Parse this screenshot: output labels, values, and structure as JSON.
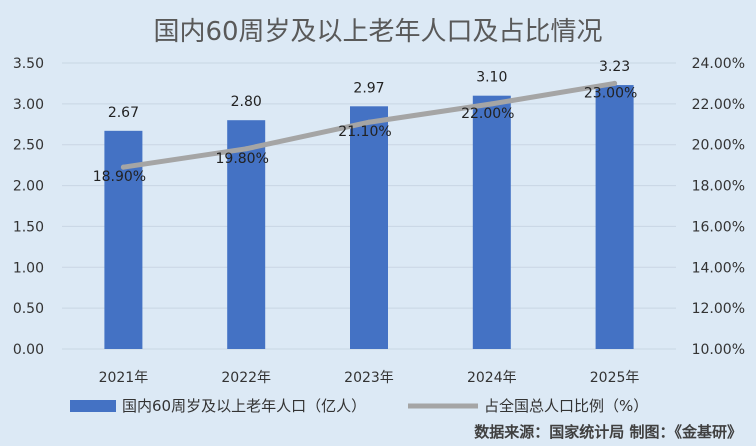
{
  "chart_data": {
    "type": "bar",
    "title": "国内60周岁及以上老年人口及占比情况",
    "categories": [
      "2021年",
      "2022年",
      "2023年",
      "2024年",
      "2025年"
    ],
    "series": [
      {
        "name": "国内60周岁及以上老年人口（亿人）",
        "type": "bar",
        "axis": "left",
        "values": [
          2.67,
          2.8,
          2.97,
          3.1,
          3.23
        ],
        "labels": [
          "2.67",
          "2.80",
          "2.97",
          "3.10",
          "3.23"
        ],
        "color": "#4472c4"
      },
      {
        "name": "占全国总人口比例（%）",
        "type": "line",
        "axis": "right",
        "values": [
          18.9,
          19.8,
          21.1,
          22.0,
          23.0
        ],
        "labels": [
          "18.90%",
          "19.80%",
          "21.10%",
          "22.00%",
          "23.00%"
        ],
        "color": "#a5a5a5"
      }
    ],
    "ylim": [
      0,
      3.5
    ],
    "y_ticks": [
      "0.00",
      "0.50",
      "1.00",
      "1.50",
      "2.00",
      "2.50",
      "3.00",
      "3.50"
    ],
    "y2lim": [
      10,
      24
    ],
    "y2_ticks": [
      "10.00%",
      "12.00%",
      "14.00%",
      "16.00%",
      "18.00%",
      "20.00%",
      "22.00%",
      "24.00%"
    ],
    "grid": true,
    "legend_position": "bottom"
  },
  "source_note": "数据来源：国家统计局   制图：《金基研》",
  "colors": {
    "background": "#dce9f5",
    "bar": "#4472c4",
    "line": "#a5a5a5",
    "title": "#595959"
  }
}
